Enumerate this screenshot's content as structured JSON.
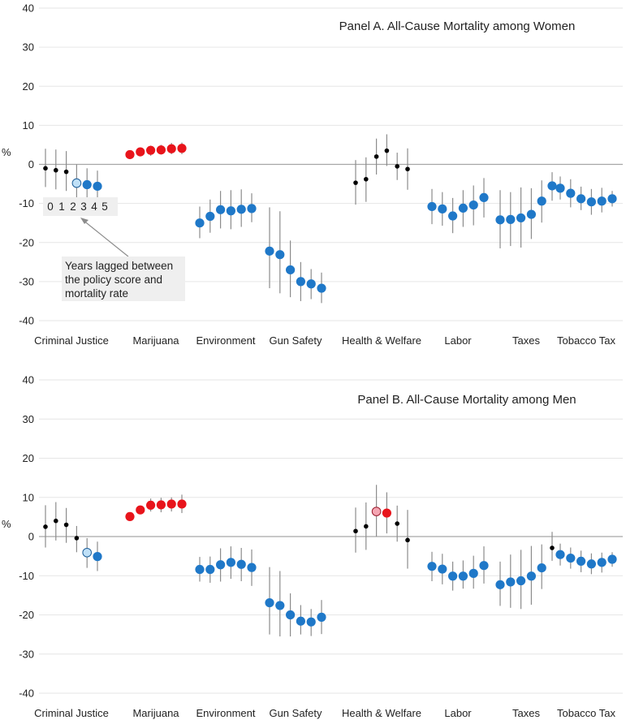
{
  "colors": {
    "sig_pos": "#e8141b",
    "sig_neg": "#1f78c8",
    "nonsig": "#000000",
    "light_blue": "#bfe0f7",
    "light_red": "#f4a6b3",
    "grid": "#e6e6e6",
    "zero": "#a6a6a6",
    "ci": "#8c8c8c"
  },
  "categories": [
    "Criminal Justice",
    "Marijuana",
    "Environment",
    "Gun Safety",
    "Health & Welfare",
    "Labor",
    "Taxes",
    "Tobacco Tax"
  ],
  "y_axis_label": "%",
  "annotation": {
    "lags": [
      "0",
      "1",
      "2",
      "3",
      "4",
      "5"
    ],
    "note_lines": [
      "Years lagged between",
      "the policy score and",
      "mortality rate"
    ]
  },
  "chart_data": [
    {
      "type": "scatter",
      "title": "Panel A. All-Cause Mortality among Women",
      "ylabel": "%",
      "ylim": [
        -40,
        40
      ],
      "yticks": [
        -40,
        -30,
        -20,
        -10,
        0,
        10,
        20,
        30,
        40
      ],
      "series": [
        {
          "category": "Criminal Justice",
          "values": [
            -1.0,
            -1.5,
            -1.9,
            -4.8,
            -5.2,
            -5.6
          ],
          "lower": [
            -5.8,
            -6.4,
            -6.8,
            -9.5,
            -9.4,
            -9.6
          ],
          "upper": [
            4.0,
            3.8,
            3.4,
            0.0,
            -1.0,
            -1.6
          ],
          "sig": [
            "ns",
            "ns",
            "ns",
            "light_neg",
            "neg",
            "neg"
          ]
        },
        {
          "category": "Marijuana",
          "values": [
            2.5,
            3.2,
            3.6,
            3.7,
            4.0,
            4.1
          ],
          "lower": [
            1.9,
            2.5,
            2.2,
            2.5,
            2.6,
            2.6
          ],
          "upper": [
            3.1,
            4.0,
            4.8,
            5.0,
            5.5,
            5.6
          ],
          "sig": [
            "pos",
            "pos",
            "pos",
            "pos",
            "pos",
            "pos"
          ]
        },
        {
          "category": "Environment",
          "values": [
            -15.0,
            -13.3,
            -11.6,
            -11.9,
            -11.5,
            -11.3
          ],
          "lower": [
            -18.9,
            -17.5,
            -16.4,
            -16.6,
            -16.0,
            -14.8
          ],
          "upper": [
            -10.8,
            -9.0,
            -6.8,
            -6.6,
            -6.4,
            -7.4
          ],
          "sig": [
            "neg",
            "neg",
            "neg",
            "neg",
            "neg",
            "neg"
          ]
        },
        {
          "category": "Gun Safety",
          "values": [
            -22.2,
            -23.1,
            -27.0,
            -30.0,
            -30.6,
            -31.7
          ],
          "lower": [
            -31.7,
            -33.0,
            -34.0,
            -35.0,
            -34.5,
            -35.5
          ],
          "upper": [
            -11.0,
            -12.0,
            -19.5,
            -25.0,
            -26.8,
            -27.7
          ],
          "sig": [
            "neg",
            "neg",
            "neg",
            "neg",
            "neg",
            "neg"
          ]
        },
        {
          "category": "Health & Welfare",
          "values": [
            -4.7,
            -3.8,
            2.0,
            3.5,
            -0.5,
            -1.2
          ],
          "lower": [
            -10.3,
            -9.6,
            -2.6,
            -0.4,
            -4.0,
            -6.5
          ],
          "upper": [
            1.1,
            1.8,
            6.6,
            7.7,
            3.0,
            4.1
          ],
          "sig": [
            "ns",
            "ns",
            "ns",
            "ns",
            "ns",
            "ns"
          ]
        },
        {
          "category": "Labor",
          "values": [
            -10.8,
            -11.4,
            -13.2,
            -11.2,
            -10.4,
            -8.5
          ],
          "lower": [
            -15.3,
            -15.7,
            -17.6,
            -16.0,
            -15.6,
            -13.6
          ],
          "upper": [
            -6.3,
            -7.1,
            -8.6,
            -6.6,
            -5.4,
            -3.5
          ],
          "sig": [
            "neg",
            "neg",
            "neg",
            "neg",
            "neg",
            "neg"
          ]
        },
        {
          "category": "Taxes",
          "values": [
            -14.2,
            -14.1,
            -13.7,
            -12.8,
            -9.4,
            -5.5
          ],
          "lower": [
            -21.5,
            -20.9,
            -21.3,
            -19.1,
            -14.9,
            -9.3
          ],
          "upper": [
            -6.6,
            -7.1,
            -5.9,
            -6.1,
            -4.1,
            -2.0
          ],
          "sig": [
            "neg",
            "neg",
            "neg",
            "neg",
            "neg",
            "neg"
          ]
        },
        {
          "category": "Tobacco Tax",
          "values": [
            -6.1,
            -7.4,
            -8.8,
            -9.6,
            -9.4,
            -8.8
          ],
          "lower": [
            -9.0,
            -11.0,
            -11.7,
            -12.9,
            -12.3,
            -10.8
          ],
          "upper": [
            -3.1,
            -3.8,
            -5.7,
            -6.3,
            -6.0,
            -6.8
          ],
          "sig": [
            "neg",
            "neg",
            "neg",
            "neg",
            "neg",
            "neg"
          ]
        }
      ]
    },
    {
      "type": "scatter",
      "title": "Panel B. All-Cause Mortality among Men",
      "ylabel": "%",
      "ylim": [
        -40,
        40
      ],
      "yticks": [
        -40,
        -30,
        -20,
        -10,
        0,
        10,
        20,
        30,
        40
      ],
      "series": [
        {
          "category": "Criminal Justice",
          "values": [
            2.5,
            4.0,
            3.0,
            -0.4,
            -4.1,
            -5.1
          ],
          "lower": [
            -2.8,
            -1.0,
            -1.6,
            -4.0,
            -8.0,
            -8.8
          ],
          "upper": [
            8.0,
            8.8,
            7.3,
            2.7,
            -0.4,
            -1.3
          ],
          "sig": [
            "ns",
            "ns",
            "ns",
            "ns",
            "light_neg",
            "neg"
          ]
        },
        {
          "category": "Marijuana",
          "values": [
            5.1,
            6.8,
            8.0,
            8.1,
            8.3,
            8.3
          ],
          "lower": [
            4.6,
            5.8,
            6.4,
            6.2,
            6.4,
            6.0
          ],
          "upper": [
            5.7,
            7.9,
            9.7,
            9.9,
            10.0,
            10.7
          ],
          "sig": [
            "pos",
            "pos",
            "pos",
            "pos",
            "pos",
            "pos"
          ]
        },
        {
          "category": "Environment",
          "values": [
            -8.4,
            -8.4,
            -7.2,
            -6.6,
            -7.1,
            -7.9
          ],
          "lower": [
            -11.5,
            -11.8,
            -11.5,
            -10.8,
            -11.4,
            -12.6
          ],
          "upper": [
            -5.2,
            -5.1,
            -3.0,
            -2.5,
            -2.9,
            -3.3
          ],
          "sig": [
            "neg",
            "neg",
            "neg",
            "neg",
            "neg",
            "neg"
          ]
        },
        {
          "category": "Gun Safety",
          "values": [
            -16.9,
            -17.6,
            -20.0,
            -21.6,
            -21.8,
            -20.6
          ],
          "lower": [
            -25.0,
            -25.5,
            -25.5,
            -25.0,
            -25.4,
            -24.9
          ],
          "upper": [
            -7.8,
            -8.8,
            -14.5,
            -17.5,
            -18.5,
            -16.2
          ],
          "sig": [
            "neg",
            "neg",
            "neg",
            "neg",
            "neg",
            "neg"
          ]
        },
        {
          "category": "Health & Welfare",
          "values": [
            1.4,
            2.6,
            6.4,
            6.0,
            3.3,
            -0.9
          ],
          "lower": [
            -4.1,
            -3.4,
            0.0,
            0.8,
            -1.3,
            -8.2
          ],
          "upper": [
            7.4,
            8.7,
            13.2,
            11.3,
            7.9,
            6.8
          ],
          "sig": [
            "ns",
            "ns",
            "light_pos",
            "pos",
            "ns",
            "ns"
          ]
        },
        {
          "category": "Labor",
          "values": [
            -7.6,
            -8.3,
            -10.1,
            -10.1,
            -9.4,
            -7.4
          ],
          "lower": [
            -11.4,
            -12.2,
            -13.8,
            -13.3,
            -13.3,
            -12.0
          ],
          "upper": [
            -3.9,
            -4.4,
            -6.4,
            -6.1,
            -4.9,
            -2.5
          ],
          "sig": [
            "neg",
            "neg",
            "neg",
            "neg",
            "neg",
            "neg"
          ]
        },
        {
          "category": "Taxes",
          "values": [
            -12.3,
            -11.6,
            -11.3,
            -10.1,
            -8.0,
            -2.9
          ],
          "lower": [
            -17.7,
            -18.2,
            -18.5,
            -17.4,
            -13.4,
            -6.2
          ],
          "upper": [
            -6.4,
            -4.6,
            -3.4,
            -2.4,
            -2.0,
            1.2
          ],
          "sig": [
            "neg",
            "neg",
            "neg",
            "neg",
            "neg",
            "ns"
          ]
        },
        {
          "category": "Tobacco Tax",
          "values": [
            -4.6,
            -5.5,
            -6.3,
            -7.0,
            -6.6,
            -5.8
          ],
          "lower": [
            -7.4,
            -8.2,
            -9.1,
            -9.6,
            -9.2,
            -7.7
          ],
          "upper": [
            -1.8,
            -2.8,
            -3.6,
            -4.3,
            -4.1,
            -4.0
          ],
          "sig": [
            "neg",
            "neg",
            "neg",
            "neg",
            "neg",
            "neg"
          ]
        }
      ]
    }
  ]
}
